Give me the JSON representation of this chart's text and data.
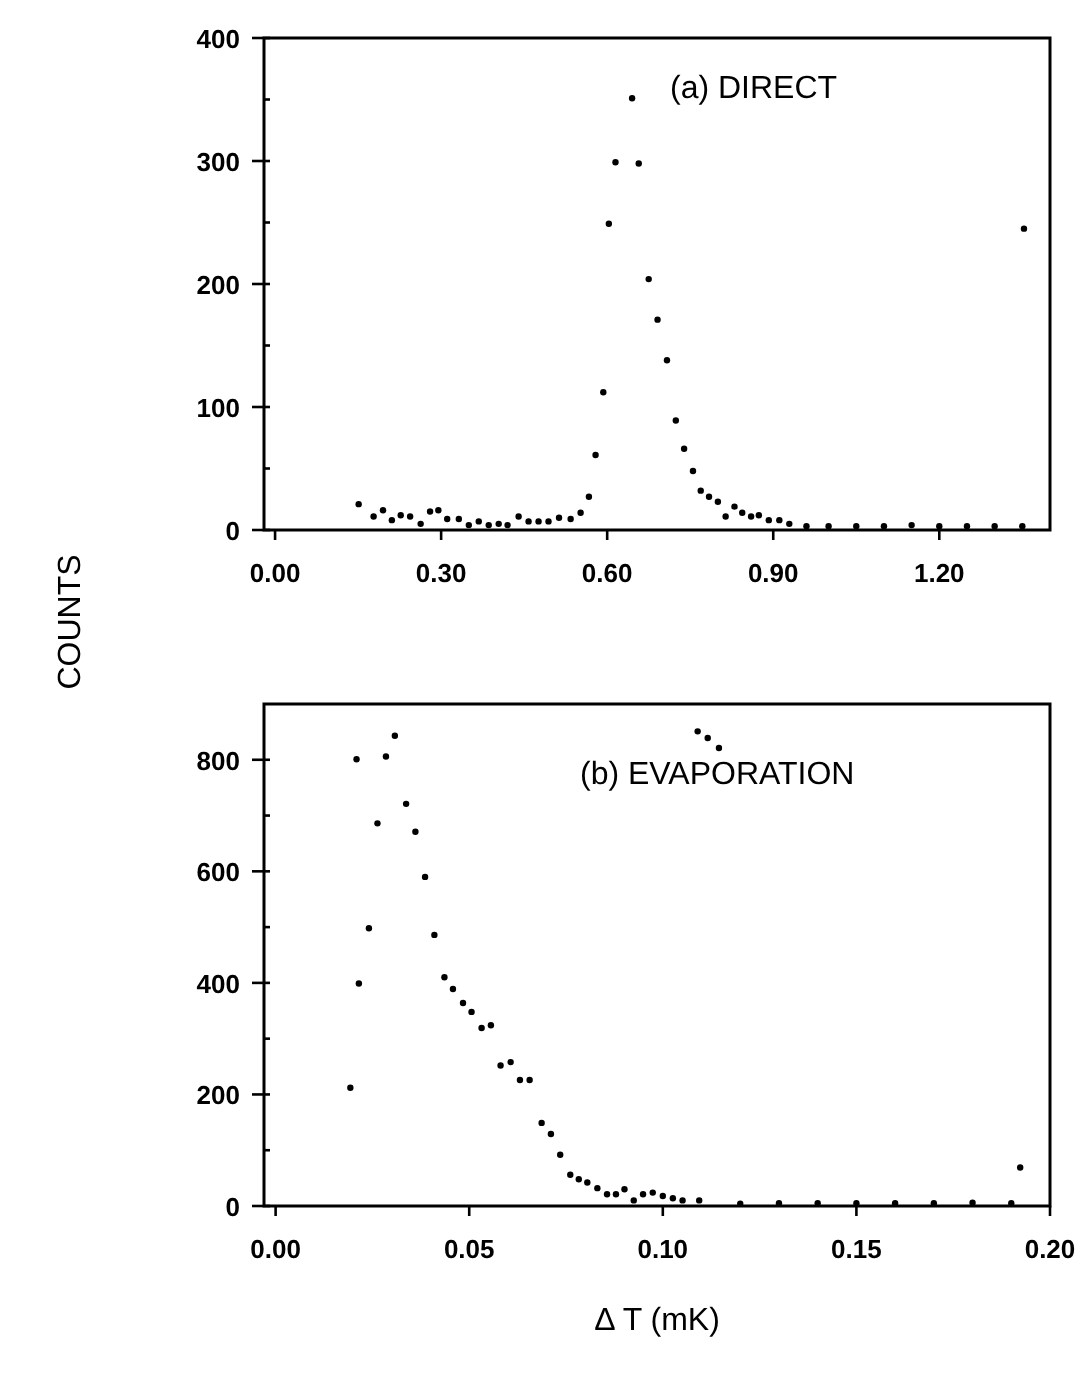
{
  "chart_data": [
    {
      "type": "scatter",
      "ylabel": "COUNTS",
      "annotations": [
        "(a)  DIRECT"
      ],
      "xlim": [
        -0.02,
        1.4
      ],
      "ylim": [
        0,
        400
      ],
      "xticks": [
        {
          "value": 0,
          "label": "0.00"
        },
        {
          "value": 0.3,
          "label": "0.30"
        },
        {
          "value": 0.6,
          "label": "0.60"
        },
        {
          "value": 0.9,
          "label": "0.90"
        },
        {
          "value": 1.2,
          "label": "1.20"
        }
      ],
      "yticks": [
        0,
        {
          "value": 50,
          "label": null
        },
        100,
        {
          "value": 150,
          "label": null
        },
        200,
        {
          "value": 250,
          "label": null
        },
        300,
        {
          "value": 350,
          "label": null
        },
        400
      ],
      "marker": "circle",
      "grid": false,
      "series": [
        {
          "color": "#000000",
          "x": [
            0.151,
            0.178,
            0.195,
            0.211,
            0.227,
            0.244,
            0.263,
            0.28,
            0.295,
            0.311,
            0.332,
            0.35,
            0.368,
            0.386,
            0.404,
            0.42,
            0.44,
            0.458,
            0.476,
            0.494,
            0.513,
            0.534,
            0.552,
            0.567,
            0.579,
            0.593,
            0.603,
            0.615,
            0.645,
            0.657,
            0.675,
            0.691,
            0.708,
            0.724,
            0.739,
            0.755,
            0.769,
            0.784,
            0.8,
            0.814,
            0.83,
            0.844,
            0.86,
            0.874,
            0.892,
            0.911,
            0.929,
            0.96,
            1.0,
            1.05,
            1.1,
            1.15,
            1.2,
            1.25,
            1.3,
            1.35,
            1.353
          ],
          "values": [
            21,
            11,
            16,
            8,
            12,
            11,
            5,
            15,
            16,
            9,
            9,
            4,
            7,
            4,
            5,
            4,
            11,
            7,
            7,
            7,
            10,
            9,
            14,
            27,
            61,
            112,
            249,
            299,
            351,
            298,
            204,
            171,
            138,
            89,
            66,
            48,
            32,
            27,
            23,
            11,
            19,
            14,
            11,
            12,
            8,
            8,
            5,
            3,
            3,
            3,
            3,
            4,
            3,
            3,
            3,
            3,
            245
          ]
        }
      ]
    },
    {
      "type": "scatter",
      "xlabel": "Δ T (mK)",
      "annotations": [
        "(b)  EVAPORATION"
      ],
      "xlim": [
        -0.003,
        0.2
      ],
      "ylim": [
        0,
        900
      ],
      "xticks": [
        {
          "value": 0,
          "label": "0.00"
        },
        {
          "value": 0.05,
          "label": "0.05"
        },
        {
          "value": 0.1,
          "label": "0.10"
        },
        {
          "value": 0.15,
          "label": "0.15"
        },
        {
          "value": 0.2,
          "label": "0.20"
        }
      ],
      "yticks": [
        0,
        {
          "value": 100,
          "label": null
        },
        200,
        {
          "value": 300,
          "label": null
        },
        400,
        {
          "value": 500,
          "label": null
        },
        600,
        {
          "value": 700,
          "label": null
        },
        800
      ],
      "marker": "circle",
      "grid": false,
      "series": [
        {
          "color": "#000000",
          "x": [
            0.0193,
            0.0209,
            0.0215,
            0.0241,
            0.0263,
            0.0285,
            0.0308,
            0.0337,
            0.0361,
            0.0386,
            0.041,
            0.0436,
            0.0458,
            0.0484,
            0.0506,
            0.0532,
            0.0556,
            0.0581,
            0.0607,
            0.0631,
            0.0656,
            0.0687,
            0.0711,
            0.0735,
            0.0761,
            0.0783,
            0.0805,
            0.0831,
            0.0856,
            0.0879,
            0.0901,
            0.0925,
            0.0949,
            0.0974,
            0.1,
            0.1026,
            0.1051,
            0.1094,
            0.109,
            0.1116,
            0.1145,
            0.12,
            0.13,
            0.14,
            0.15,
            0.16,
            0.17,
            0.18,
            0.19,
            0.1923
          ],
          "values": [
            212,
            801,
            399,
            498,
            686,
            806,
            843,
            721,
            671,
            590,
            486,
            410,
            389,
            364,
            348,
            319,
            324,
            252,
            258,
            226,
            226,
            149,
            129,
            92,
            56,
            48,
            42,
            32,
            21,
            21,
            30,
            10,
            21,
            24,
            18,
            14,
            10,
            10,
            851,
            839,
            821,
            4,
            5,
            5,
            5,
            5,
            5,
            6,
            5,
            69
          ]
        }
      ]
    }
  ]
}
